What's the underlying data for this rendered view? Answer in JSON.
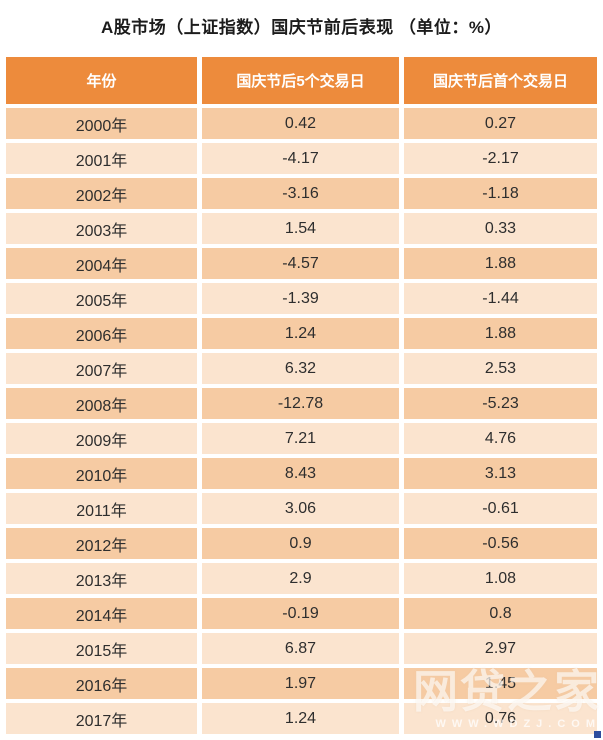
{
  "page": {
    "title": "A股市场（上证指数）国庆节前后表现 （单位：%）"
  },
  "table": {
    "columns": [
      "年份",
      "国庆节后5个交易日",
      "国庆节后首个交易日"
    ]
  },
  "watermark": {
    "brand": "网贷之家",
    "url": "WWW.WDZJ.COM"
  },
  "colors": {
    "header_bg": "#ED8B3C",
    "row_dark": "#F6CBA3",
    "row_light": "#FBE4CF",
    "title_color": "#1C1C1C",
    "cell_text": "#2E2E2E",
    "header_text": "#FFFFFF",
    "corner_mark": "#2E4D9E"
  },
  "chart_data": {
    "type": "table",
    "title": "A股市场（上证指数）国庆节前后表现 （单位：%）",
    "unit": "%",
    "columns": [
      "年份",
      "国庆节后5个交易日",
      "国庆节后首个交易日"
    ],
    "rows": [
      [
        "2000年",
        "0.42",
        "0.27"
      ],
      [
        "2001年",
        "-4.17",
        "-2.17"
      ],
      [
        "2002年",
        "-3.16",
        "-1.18"
      ],
      [
        "2003年",
        "1.54",
        "0.33"
      ],
      [
        "2004年",
        "-4.57",
        "1.88"
      ],
      [
        "2005年",
        "-1.39",
        "-1.44"
      ],
      [
        "2006年",
        "1.24",
        "1.88"
      ],
      [
        "2007年",
        "6.32",
        "2.53"
      ],
      [
        "2008年",
        "-12.78",
        "-5.23"
      ],
      [
        "2009年",
        "7.21",
        "4.76"
      ],
      [
        "2010年",
        "8.43",
        "3.13"
      ],
      [
        "2011年",
        "3.06",
        "-0.61"
      ],
      [
        "2012年",
        "0.9",
        "-0.56"
      ],
      [
        "2013年",
        "2.9",
        "1.08"
      ],
      [
        "2014年",
        "-0.19",
        "0.8"
      ],
      [
        "2015年",
        "6.87",
        "2.97"
      ],
      [
        "2016年",
        "1.97",
        "1.45"
      ],
      [
        "2017年",
        "1.24",
        "0.76"
      ]
    ]
  }
}
